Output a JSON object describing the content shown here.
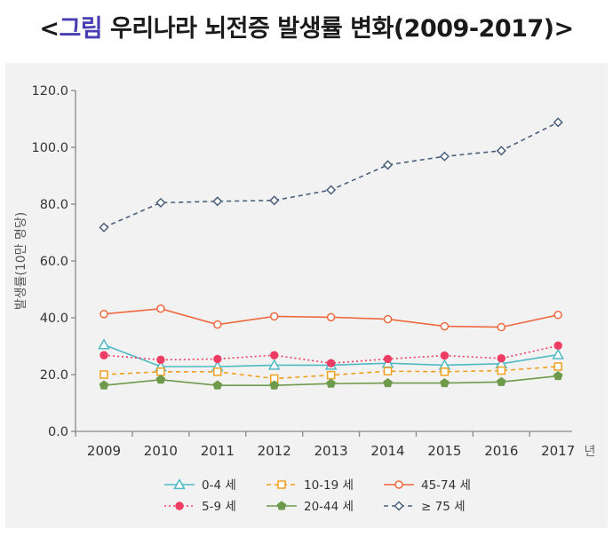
{
  "title": {
    "prefix": "<",
    "accent": "그림",
    "text": " 우리나라 뇌전증 발생률 변화(2009-2017)>"
  },
  "colors": {
    "panel": "#f2f2f2",
    "axis": "#888888",
    "text": "#333333"
  },
  "chart_data": {
    "type": "line",
    "title": "",
    "xlabel": "",
    "x_unit": "년",
    "ylabel": "발생률(10만 명당)",
    "ylim": [
      0,
      120
    ],
    "yticks": [
      0,
      20,
      40,
      60,
      80,
      100,
      120
    ],
    "ytick_labels": [
      "0.0",
      "20.0",
      "40.0",
      "60.0",
      "80.0",
      "100.0",
      "120.0"
    ],
    "grid": false,
    "legend_position": "bottom",
    "categories": [
      "2009",
      "2010",
      "2011",
      "2012",
      "2013",
      "2014",
      "2015",
      "2016",
      "2017"
    ],
    "series": [
      {
        "name": "0-4 세",
        "color": "#4fb9c4",
        "marker": "triangle",
        "dash": "solid",
        "values": [
          30.5,
          22.8,
          22.8,
          23.3,
          23.3,
          24.0,
          23.3,
          23.8,
          27.0
        ]
      },
      {
        "name": "10-19 세",
        "color": "#f0a020",
        "marker": "square",
        "dash": "dashed",
        "values": [
          20.0,
          21.0,
          21.0,
          18.6,
          19.8,
          21.2,
          21.0,
          21.4,
          22.8
        ]
      },
      {
        "name": "45-74 세",
        "color": "#ee6840",
        "marker": "circle-open",
        "dash": "solid",
        "values": [
          41.3,
          43.2,
          37.6,
          40.5,
          40.2,
          39.5,
          37.0,
          36.7,
          41.0
        ]
      },
      {
        "name": "5-9 세",
        "color": "#ee3d62",
        "marker": "circle",
        "dash": "dotted",
        "values": [
          26.8,
          25.2,
          25.5,
          26.8,
          24.0,
          25.5,
          26.7,
          25.7,
          30.2
        ]
      },
      {
        "name": "20-44 세",
        "color": "#6e9a4c",
        "marker": "pentagon",
        "dash": "solid",
        "values": [
          16.2,
          18.2,
          16.2,
          16.2,
          16.8,
          17.0,
          17.0,
          17.4,
          19.5
        ]
      },
      {
        "name": "≥ 75 세",
        "color": "#4a5f7a",
        "marker": "diamond-open",
        "dash": "dashed",
        "values": [
          71.8,
          80.5,
          81.0,
          81.3,
          85.0,
          93.8,
          96.8,
          98.8,
          108.8
        ]
      }
    ]
  }
}
